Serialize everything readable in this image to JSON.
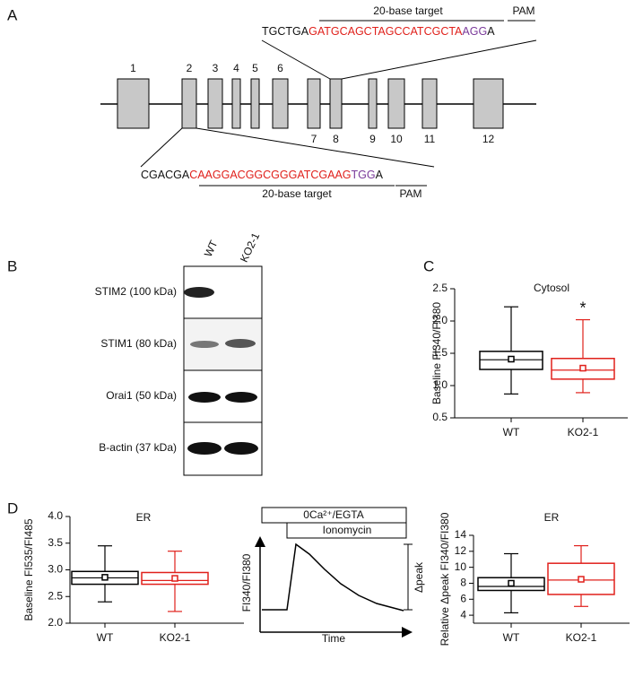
{
  "panel_labels": [
    "A",
    "B",
    "C",
    "D"
  ],
  "gene_diagram": {
    "exon_labels": [
      "1",
      "2",
      "3",
      "4",
      "5",
      "6",
      "7",
      "8",
      "9",
      "10",
      "11",
      "12"
    ],
    "top_sequence": {
      "prefix": "TGCTGA",
      "target": "GATGCAGCTAGCCATCGCTA",
      "pam": "AGG",
      "suffix": "A",
      "target_label": "20-base target",
      "pam_label": "PAM"
    },
    "bottom_sequence": {
      "prefix": "CGACGA",
      "target": "CAAGGACGGCGGGATCGAAG",
      "pam": "TGG",
      "suffix": "A",
      "target_label": "20-base target",
      "pam_label": "PAM"
    }
  },
  "western_blot": {
    "lanes": [
      "WT",
      "KO2-1"
    ],
    "rows": [
      "STIM2 (100 kDa)",
      "STIM1 (80 kDa)",
      "Orai1 (50 kDa)",
      "B-actin (37 kDa)"
    ]
  },
  "schematic": {
    "bar_top": "0Ca²⁺/EGTA",
    "bar_bottom": "Ionomycin",
    "y_label": "FI340/FI380",
    "x_label": "Time",
    "bracket_label": "Δpeak"
  },
  "chart_data": [
    {
      "type": "box",
      "title": "Cytosol",
      "y_label": "Baseline FI340/FI380",
      "annotation": "*",
      "ylim": [
        0.5,
        2.5
      ],
      "yticks": [
        0.5,
        {
          "value": 1,
          "label": "1.0"
        },
        1.5,
        {
          "value": 2,
          "label": "2.0"
        },
        2.5
      ],
      "series": [
        {
          "name": "WT",
          "color": "#000000",
          "min": 0.87,
          "q1": 1.25,
          "median": 1.4,
          "q3": 1.53,
          "max": 2.22,
          "mean": 1.41
        },
        {
          "name": "KO2-1",
          "color": "#e0201b",
          "min": 0.89,
          "q1": 1.1,
          "median": 1.24,
          "q3": 1.42,
          "max": 2.02,
          "mean": 1.27
        }
      ]
    },
    {
      "type": "box",
      "title": "ER",
      "y_label": "Baseline FI535/FI485",
      "ylim": [
        2,
        4
      ],
      "yticks": [
        {
          "value": 2,
          "label": "2.0"
        },
        2.5,
        {
          "value": 3,
          "label": "3.0"
        },
        3.5,
        {
          "value": 4,
          "label": "4.0"
        }
      ],
      "series": [
        {
          "name": "WT",
          "color": "#000000",
          "min": 2.4,
          "q1": 2.73,
          "median": 2.85,
          "q3": 2.97,
          "max": 3.45,
          "mean": 2.86
        },
        {
          "name": "KO2-1",
          "color": "#e0201b",
          "min": 2.22,
          "q1": 2.73,
          "median": 2.8,
          "q3": 2.95,
          "max": 3.35,
          "mean": 2.84
        }
      ]
    },
    {
      "type": "box",
      "title": "ER",
      "y_label": "Relative Δpeak FI340/FI380",
      "ylim": [
        3,
        14
      ],
      "yticks": [
        4,
        6,
        8,
        10,
        12,
        14
      ],
      "series": [
        {
          "name": "WT",
          "color": "#000000",
          "min": 4.3,
          "q1": 7.1,
          "median": 7.6,
          "q3": 8.7,
          "max": 11.7,
          "mean": 8.0
        },
        {
          "name": "KO2-1",
          "color": "#e0201b",
          "min": 5.1,
          "q1": 6.6,
          "median": 8.4,
          "q3": 10.5,
          "max": 12.7,
          "mean": 8.5
        }
      ]
    }
  ]
}
